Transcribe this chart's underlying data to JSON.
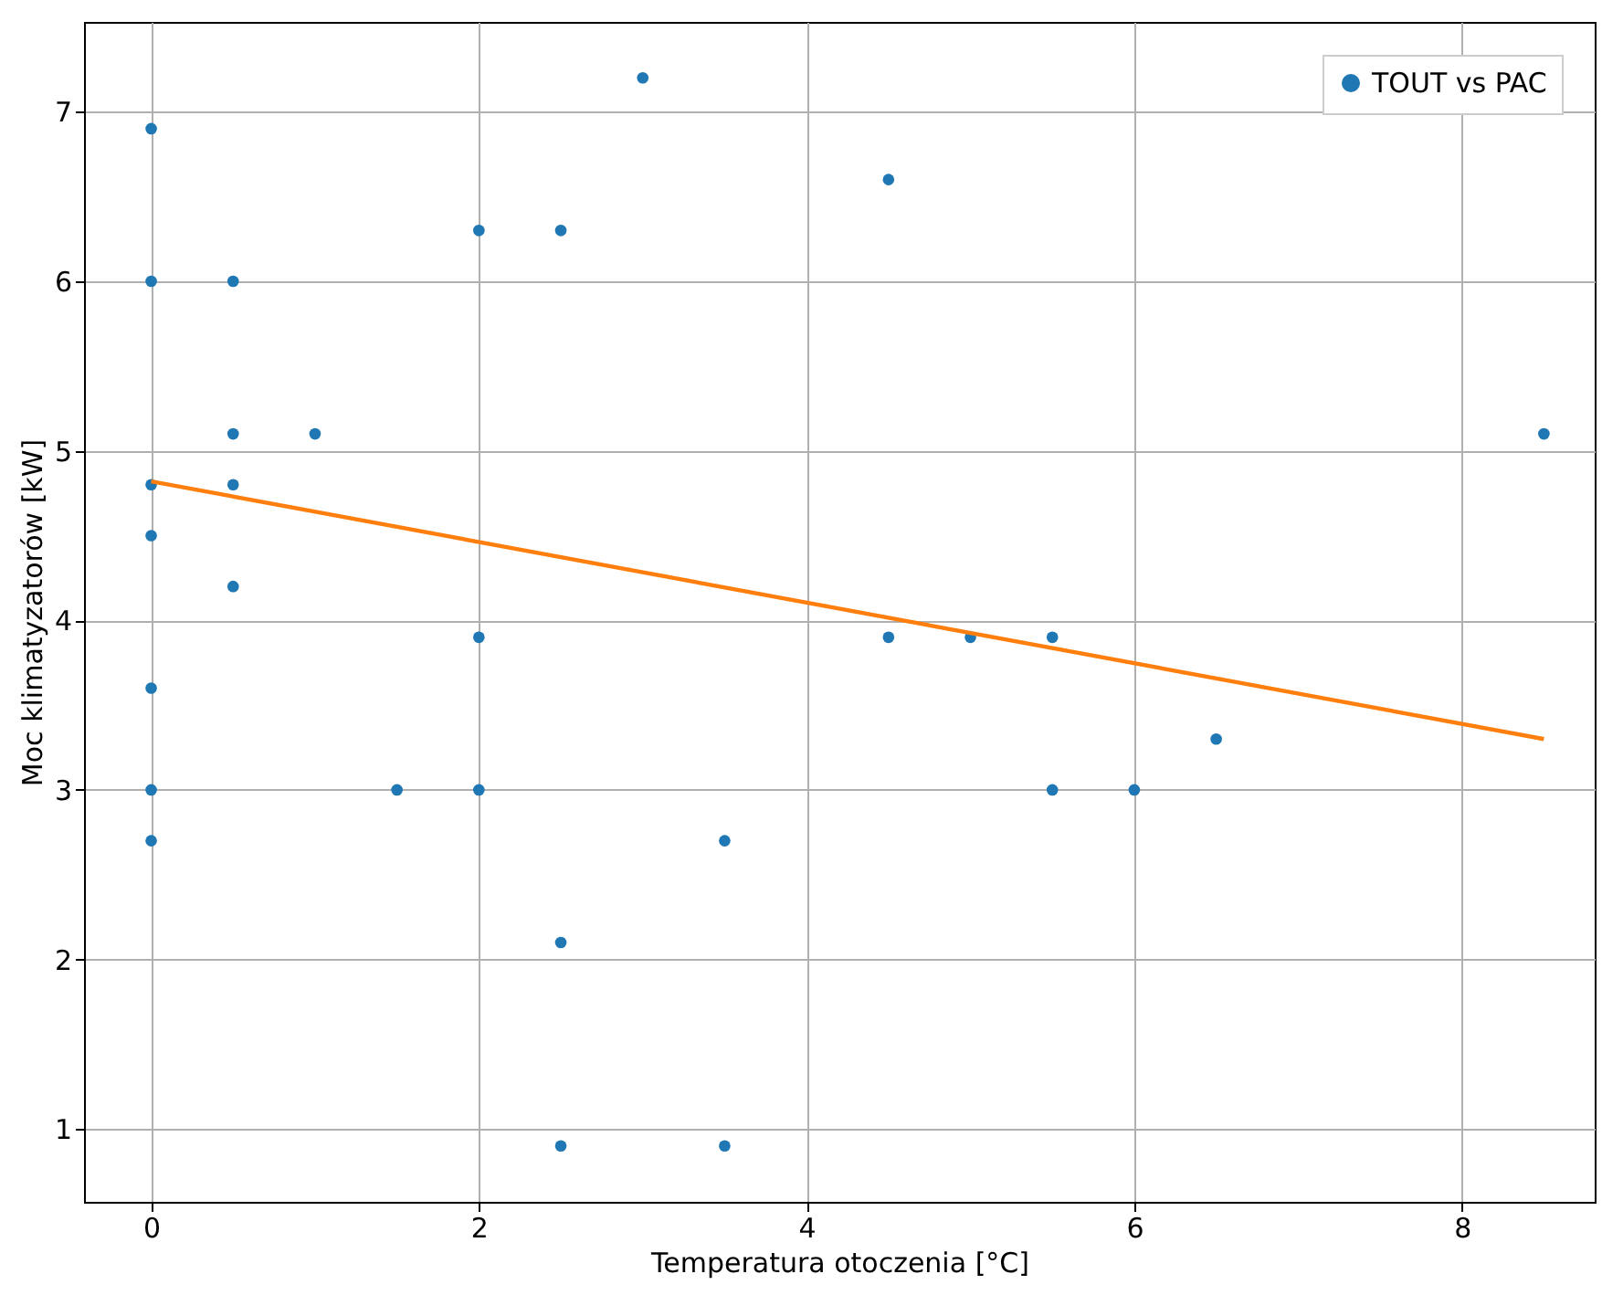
{
  "chart_data": {
    "type": "scatter",
    "xlabel": "Temperatura otoczenia [°C]",
    "ylabel": "Moc klimatyzatorów [kW]",
    "xlim": [
      -0.41,
      8.81
    ],
    "ylim": [
      0.57,
      7.53
    ],
    "xticks": [
      0,
      2,
      4,
      6,
      8
    ],
    "yticks": [
      1,
      2,
      3,
      4,
      5,
      6,
      7
    ],
    "grid": true,
    "legend": "top right",
    "series": [
      {
        "name": "TOUT vs PAC",
        "color": "#1f77b4",
        "marker": "circle",
        "x": [
          0,
          0,
          0,
          0,
          0,
          0,
          0,
          0.5,
          0.5,
          0.5,
          0.5,
          1,
          1.5,
          2,
          2,
          2,
          2.5,
          2.5,
          2.5,
          3,
          3.5,
          3.5,
          4.5,
          4.5,
          5,
          5.5,
          5.5,
          6,
          6.5,
          8.5
        ],
        "values": [
          6.9,
          6.0,
          4.8,
          4.5,
          3.6,
          3.0,
          2.7,
          6.0,
          5.1,
          4.8,
          4.2,
          5.1,
          3.0,
          6.3,
          3.9,
          3.0,
          6.3,
          2.1,
          0.9,
          7.2,
          2.7,
          0.9,
          6.6,
          3.9,
          3.9,
          3.9,
          3.0,
          3.0,
          3.3,
          5.1
        ]
      },
      {
        "type": "line",
        "color": "#ff7f0e",
        "x": [
          0,
          8.5
        ],
        "values": [
          4.82,
          3.3
        ]
      }
    ]
  }
}
